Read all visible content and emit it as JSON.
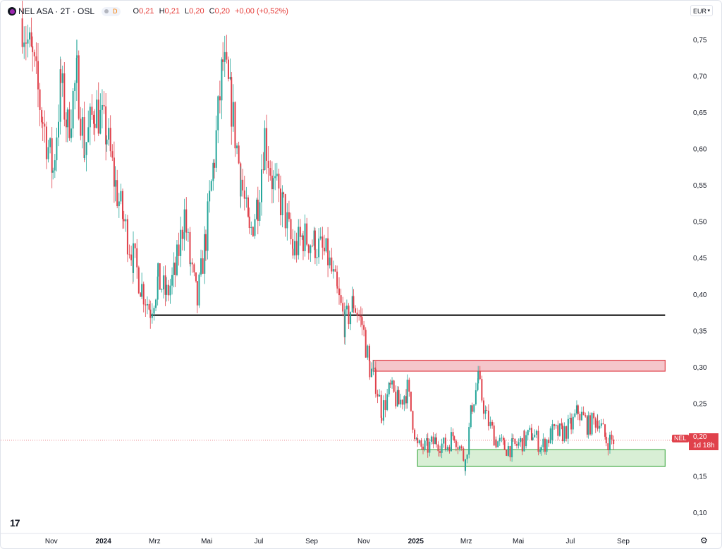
{
  "header": {
    "symbol": "NEL ASA · 2T · OSL",
    "badge": "D",
    "ohlc": {
      "o_label": "O",
      "o": "0,21",
      "h_label": "H",
      "h": "0,21",
      "l_label": "L",
      "l": "0,20",
      "c_label": "C",
      "c": "0,20",
      "change": "+0,00 (+0,52%)"
    }
  },
  "currency": "EUR",
  "price_tag": {
    "symbol": "NEL",
    "price": "0,20",
    "countdown": "1d 18h"
  },
  "colors": {
    "up": "#26a69a",
    "down": "#e0414b",
    "resistance": "#f5c6cb",
    "support": "#d8efd5"
  },
  "chart_data": {
    "type": "candlestick",
    "x_ticks": [
      "Nov",
      "2024",
      "Mrz",
      "Mai",
      "Jul",
      "Sep",
      "Nov",
      "2025",
      "Mrz",
      "Mai",
      "Jul",
      "Sep"
    ],
    "y_ticks": [
      "0,75",
      "0,70",
      "0,65",
      "0,60",
      "0,55",
      "0,50",
      "0,45",
      "0,40",
      "0,35",
      "0,30",
      "0,25",
      "0,20",
      "0,15",
      "0,10"
    ],
    "y_range": [
      0.1,
      0.75
    ],
    "last_price": 0.2,
    "price_path": [
      {
        "t": "2023-09-28",
        "v": 0.78
      },
      {
        "t": "2023-10-10",
        "v": 0.72
      },
      {
        "t": "2023-10-22",
        "v": 0.64
      },
      {
        "t": "2023-11-03",
        "v": 0.57
      },
      {
        "t": "2023-11-12",
        "v": 0.69
      },
      {
        "t": "2023-11-20",
        "v": 0.63
      },
      {
        "t": "2023-12-01",
        "v": 0.7
      },
      {
        "t": "2023-12-10",
        "v": 0.6
      },
      {
        "t": "2023-12-22",
        "v": 0.66
      },
      {
        "t": "2024-01-05",
        "v": 0.62
      },
      {
        "t": "2024-01-15",
        "v": 0.55
      },
      {
        "t": "2024-01-25",
        "v": 0.5
      },
      {
        "t": "2024-02-05",
        "v": 0.45
      },
      {
        "t": "2024-02-15",
        "v": 0.41
      },
      {
        "t": "2024-02-25",
        "v": 0.38
      },
      {
        "t": "2024-03-05",
        "v": 0.42
      },
      {
        "t": "2024-03-15",
        "v": 0.4
      },
      {
        "t": "2024-03-25",
        "v": 0.43
      },
      {
        "t": "2024-04-05",
        "v": 0.51
      },
      {
        "t": "2024-04-12",
        "v": 0.44
      },
      {
        "t": "2024-04-20",
        "v": 0.39
      },
      {
        "t": "2024-04-30",
        "v": 0.48
      },
      {
        "t": "2024-05-10",
        "v": 0.59
      },
      {
        "t": "2024-05-20",
        "v": 0.72
      },
      {
        "t": "2024-05-30",
        "v": 0.66
      },
      {
        "t": "2024-06-10",
        "v": 0.56
      },
      {
        "t": "2024-06-20",
        "v": 0.48
      },
      {
        "t": "2024-06-30",
        "v": 0.53
      },
      {
        "t": "2024-07-08",
        "v": 0.62
      },
      {
        "t": "2024-07-18",
        "v": 0.55
      },
      {
        "t": "2024-07-30",
        "v": 0.52
      },
      {
        "t": "2024-08-10",
        "v": 0.46
      },
      {
        "t": "2024-08-22",
        "v": 0.48
      },
      {
        "t": "2024-09-05",
        "v": 0.47
      },
      {
        "t": "2024-09-20",
        "v": 0.45
      },
      {
        "t": "2024-10-01",
        "v": 0.4
      },
      {
        "t": "2024-10-10",
        "v": 0.36
      },
      {
        "t": "2024-10-20",
        "v": 0.39
      },
      {
        "t": "2024-10-30",
        "v": 0.36
      },
      {
        "t": "2024-11-08",
        "v": 0.3
      },
      {
        "t": "2024-11-15",
        "v": 0.28
      },
      {
        "t": "2024-11-22",
        "v": 0.24
      },
      {
        "t": "2024-12-02",
        "v": 0.27
      },
      {
        "t": "2024-12-12",
        "v": 0.25
      },
      {
        "t": "2024-12-22",
        "v": 0.27
      },
      {
        "t": "2025-01-03",
        "v": 0.19
      },
      {
        "t": "2025-01-15",
        "v": 0.19
      },
      {
        "t": "2025-01-25",
        "v": 0.2
      },
      {
        "t": "2025-02-05",
        "v": 0.19
      },
      {
        "t": "2025-02-15",
        "v": 0.21
      },
      {
        "t": "2025-02-28",
        "v": 0.17
      },
      {
        "t": "2025-03-08",
        "v": 0.25
      },
      {
        "t": "2025-03-15",
        "v": 0.28
      },
      {
        "t": "2025-03-25",
        "v": 0.23
      },
      {
        "t": "2025-04-05",
        "v": 0.2
      },
      {
        "t": "2025-04-15",
        "v": 0.19
      },
      {
        "t": "2025-04-25",
        "v": 0.19
      },
      {
        "t": "2025-05-08",
        "v": 0.2
      },
      {
        "t": "2025-05-18",
        "v": 0.21
      },
      {
        "t": "2025-05-28",
        "v": 0.19
      },
      {
        "t": "2025-06-10",
        "v": 0.21
      },
      {
        "t": "2025-06-22",
        "v": 0.21
      },
      {
        "t": "2025-07-02",
        "v": 0.22
      },
      {
        "t": "2025-07-10",
        "v": 0.24
      },
      {
        "t": "2025-07-22",
        "v": 0.22
      },
      {
        "t": "2025-08-02",
        "v": 0.23
      },
      {
        "t": "2025-08-12",
        "v": 0.2
      },
      {
        "t": "2025-08-22",
        "v": 0.2
      }
    ],
    "annotations": {
      "horizontal_line": {
        "price": 0.372,
        "from": "2024-02-25",
        "to": "2025-10-20"
      },
      "resistance_zone": {
        "low": 0.295,
        "high": 0.31,
        "from": "2024-11-12",
        "to": "2025-10-20"
      },
      "support_zone": {
        "low": 0.164,
        "high": 0.187,
        "from": "2025-01-03",
        "to": "2025-10-20"
      }
    }
  }
}
